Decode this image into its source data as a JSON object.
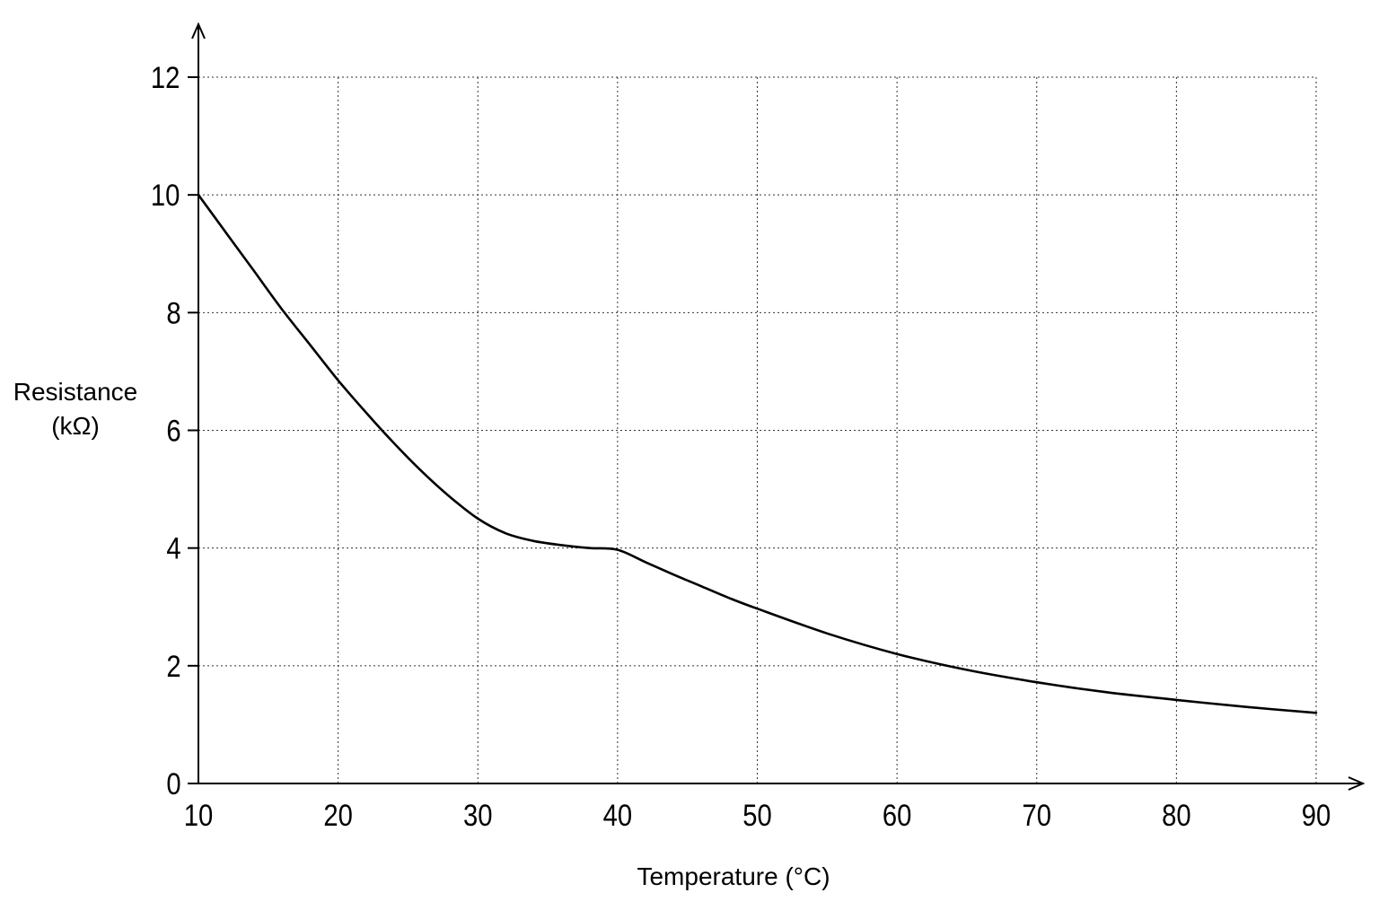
{
  "chart_data": {
    "type": "line",
    "title": "",
    "xlabel": "Temperature (°C)",
    "ylabel": [
      "Resistance",
      "(kΩ)"
    ],
    "xlim": [
      10,
      90
    ],
    "ylim": [
      0,
      12
    ],
    "xticks": [
      "10",
      "20",
      "30",
      "40",
      "50",
      "60",
      "70",
      "80",
      "90"
    ],
    "yticks": [
      "0",
      "2",
      "4",
      "6",
      "8",
      "10",
      "12"
    ],
    "grid": true,
    "grid_style": "dotted",
    "series": [
      {
        "x": [
          10,
          12,
          14,
          16,
          18,
          20,
          22,
          24,
          26,
          28,
          30,
          32,
          34,
          36,
          38,
          40,
          42,
          44,
          46,
          48,
          50,
          55,
          60,
          65,
          70,
          75,
          80,
          85,
          90
        ],
        "y": [
          10.0,
          9.35,
          8.7,
          8.05,
          7.45,
          6.85,
          6.3,
          5.78,
          5.3,
          4.87,
          4.5,
          4.25,
          4.12,
          4.05,
          4.0,
          3.97,
          3.76,
          3.55,
          3.35,
          3.15,
          2.97,
          2.55,
          2.2,
          1.93,
          1.72,
          1.55,
          1.42,
          1.3,
          1.2
        ],
        "color": "#000000"
      }
    ]
  }
}
